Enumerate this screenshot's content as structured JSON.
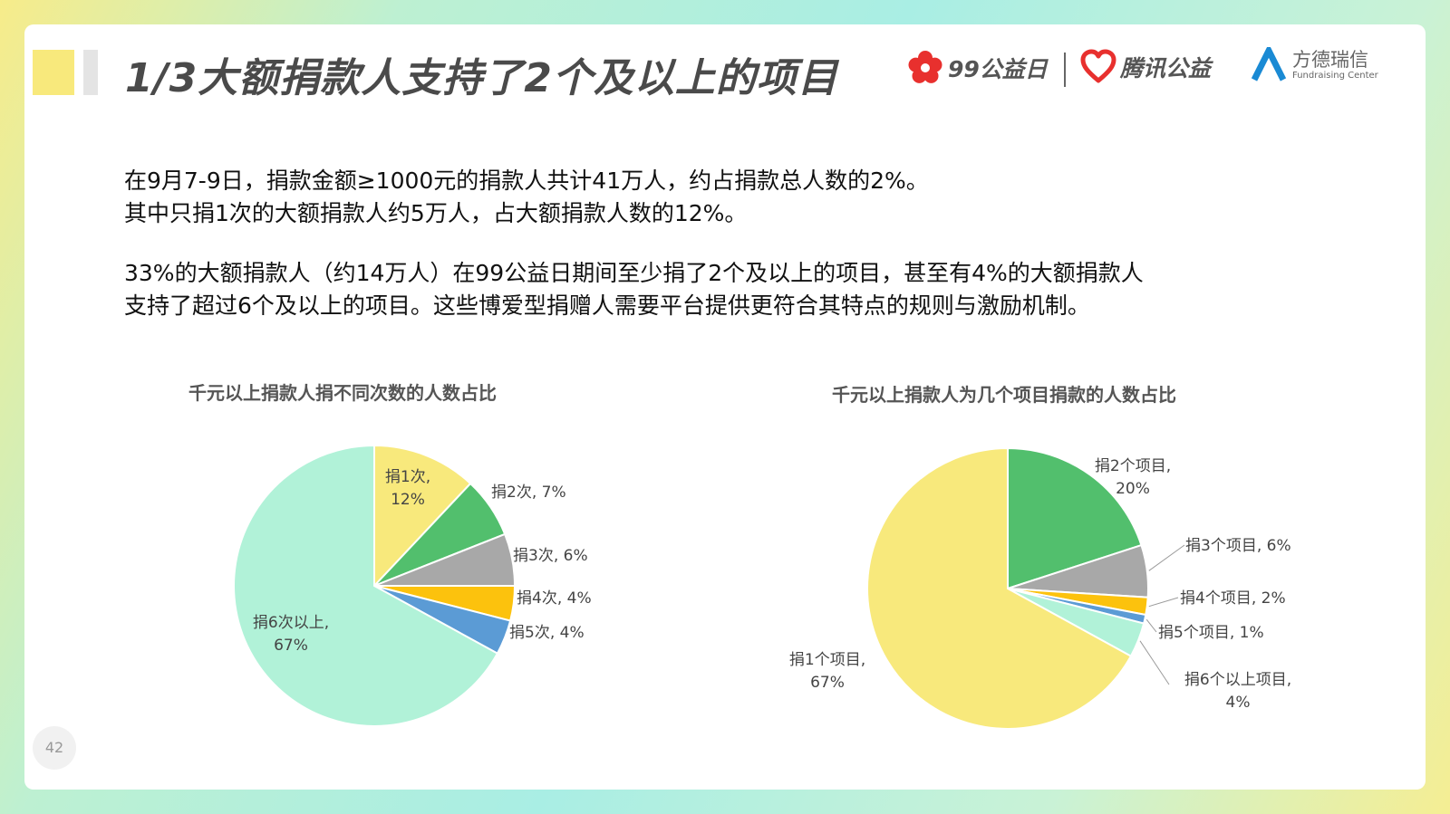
{
  "header": {
    "title": "1/3大额捐款人支持了2个及以上的项目",
    "logo_99_text": "99公益日",
    "logo_tencent_text": "腾讯公益",
    "logo_fd_cn": "方德瑞信",
    "logo_fd_en": "Fundraising Center"
  },
  "body": {
    "para1_line1": "在9月7-9日，捐款金额≥1000元的捐款人共计41万人，约占捐款总人数的2%。",
    "para1_line2": "其中只捐1次的大额捐款人约5万人，占大额捐款人数的12%。",
    "para2_line1": "33%的大额捐款人（约14万人）在99公益日期间至少捐了2个及以上的项目，甚至有4%的大额捐款人",
    "para2_line2": "支持了超过6个及以上的项目。这些博爱型捐赠人需要平台提供更符合其特点的规则与激励机制。"
  },
  "page_number": "42",
  "chart_data": [
    {
      "type": "pie",
      "title": "千元以上捐款人捐不同次数的人数占比",
      "categories": [
        "捐1次",
        "捐2次",
        "捐3次",
        "捐4次",
        "捐5次",
        "捐6次以上"
      ],
      "values": [
        12,
        7,
        6,
        4,
        4,
        67
      ],
      "value_labels": [
        "12%",
        "7%",
        "6%",
        "4%",
        "4%",
        "67%"
      ],
      "colors": [
        "#f8e97c",
        "#52bf6d",
        "#a8a8a8",
        "#fcc20d",
        "#5b9bd5",
        "#b1f2d8"
      ]
    },
    {
      "type": "pie",
      "title": "千元以上捐款人为几个项目捐款的人数占比",
      "categories": [
        "捐2个项目",
        "捐3个项目",
        "捐4个项目",
        "捐5个项目",
        "捐6个以上项目",
        "捐1个项目"
      ],
      "values": [
        20,
        6,
        2,
        1,
        4,
        67
      ],
      "value_labels": [
        "20%",
        "6%",
        "2%",
        "1%",
        "4%",
        "67%"
      ],
      "colors": [
        "#52bf6d",
        "#a8a8a8",
        "#fcc20d",
        "#5b9bd5",
        "#b1f2d8",
        "#f8e97c"
      ]
    }
  ]
}
